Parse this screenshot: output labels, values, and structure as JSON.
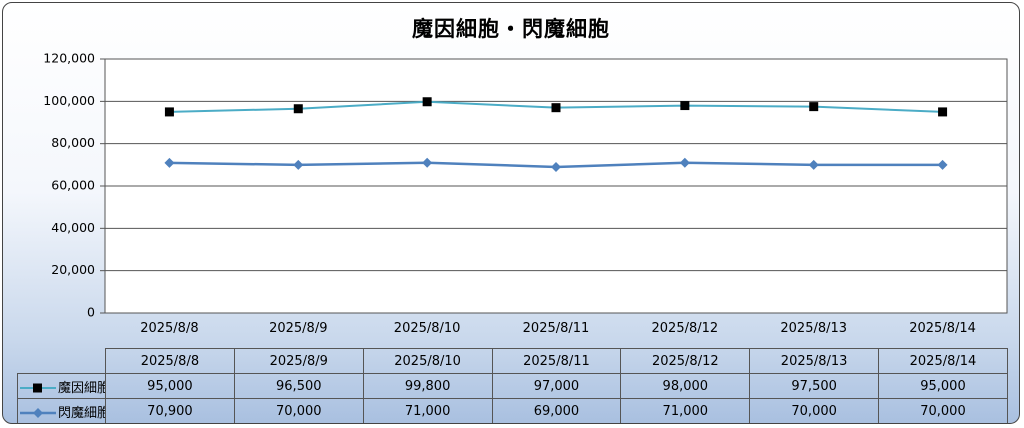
{
  "chart_data": {
    "type": "line",
    "title": "魔因細胞・閃魔細胞",
    "xlabel": "",
    "ylabel": "",
    "categories": [
      "2025/8/8",
      "2025/8/9",
      "2025/8/10",
      "2025/8/11",
      "2025/8/12",
      "2025/8/13",
      "2025/8/14"
    ],
    "ylim": [
      0,
      120000
    ],
    "yticks": [
      0,
      20000,
      40000,
      60000,
      80000,
      100000,
      120000
    ],
    "ytick_labels": [
      "0",
      "20,000",
      "40,000",
      "60,000",
      "80,000",
      "100,000",
      "120,000"
    ],
    "grid": true,
    "legend_position": "data table, left",
    "series": [
      {
        "name": "魔因細胞",
        "values": [
          95000,
          96500,
          99800,
          97000,
          98000,
          97500,
          95000
        ],
        "value_labels": [
          "95,000",
          "96,500",
          "99,800",
          "97,000",
          "98,000",
          "97,500",
          "95,000"
        ],
        "line_color": "#4bacc6",
        "marker": "square",
        "marker_color": "#000000"
      },
      {
        "name": "閃魔細胞",
        "values": [
          70900,
          70000,
          71000,
          69000,
          71000,
          70000,
          70000
        ],
        "value_labels": [
          "70,900",
          "70,000",
          "71,000",
          "69,000",
          "71,000",
          "70,000",
          "70,000"
        ],
        "line_color": "#4f81bd",
        "marker": "diamond",
        "marker_color": "#4f81bd"
      }
    ]
  }
}
